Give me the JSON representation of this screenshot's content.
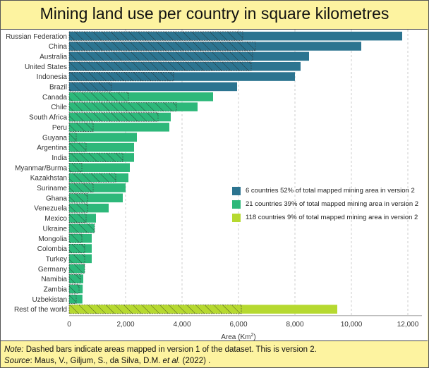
{
  "title": "Mining land use per country in square kilometres",
  "chart_data": {
    "type": "bar",
    "orientation": "horizontal",
    "xlabel_prefix": "Area (Km",
    "xlabel_sup": "2",
    "xlabel_suffix": ")",
    "xlim": [
      0,
      12500
    ],
    "xticks": [
      0,
      2000,
      4000,
      6000,
      8000,
      10000,
      12000
    ],
    "xtick_labels": [
      "0",
      "2,000",
      "4,000",
      "6,000",
      "8,000",
      "10,000",
      "12,000"
    ],
    "categories": [
      "Russian Federation",
      "China",
      "Australia",
      "United States",
      "Indonesia",
      "Brazil",
      "Canada",
      "Chile",
      "South Africa",
      "Peru",
      "Guyana",
      "Argentina",
      "India",
      "Myanmar/Burma",
      "Kazakhstan",
      "Suriname",
      "Ghana",
      "Venezuela",
      "Mexico",
      "Ukraine",
      "Mongolia",
      "Colombia",
      "Turkey",
      "Germany",
      "Namibia",
      "Zambia",
      "Uzbekistan",
      "Rest of the world"
    ],
    "series": [
      {
        "name": "Area version 2",
        "values": [
          11800,
          10350,
          8500,
          8200,
          8000,
          5950,
          5100,
          4550,
          3600,
          3550,
          2400,
          2300,
          2300,
          2150,
          2100,
          2000,
          1900,
          1400,
          950,
          900,
          800,
          800,
          800,
          550,
          500,
          480,
          470,
          9500
        ]
      },
      {
        "name": "Dashed version 1",
        "values": [
          6150,
          6600,
          6500,
          6450,
          3700,
          1500,
          2100,
          3800,
          3150,
          850,
          250,
          600,
          1900,
          450,
          1650,
          850,
          650,
          650,
          600,
          900,
          450,
          550,
          550,
          550,
          400,
          350,
          250,
          6100
        ]
      }
    ],
    "group": [
      "6",
      "6",
      "6",
      "6",
      "6",
      "6",
      "21",
      "21",
      "21",
      "21",
      "21",
      "21",
      "21",
      "21",
      "21",
      "21",
      "21",
      "21",
      "21",
      "21",
      "21",
      "21",
      "21",
      "21",
      "21",
      "21",
      "21",
      "118"
    ],
    "legend": [
      {
        "key": "6",
        "label": "6 countries 52% of total mapped mining area in version 2",
        "color": "#2c7490"
      },
      {
        "key": "21",
        "label": "21 countries 39% of total mapped mining area in version 2",
        "color": "#2db87a"
      },
      {
        "key": "118",
        "label": "118 countries 9% of total mapped mining area in version 2",
        "color": "#b6d930"
      }
    ]
  },
  "note": {
    "note_label": "Note:",
    "note_text": " Dashed bars indicate areas mapped in version 1 of the dataset. This is version 2.",
    "source_label": "Source",
    "source_text": ": Maus, V., Giljum, S., da Silva, D.M. ",
    "source_etal": "et al.",
    "source_year": " (2022) ."
  }
}
